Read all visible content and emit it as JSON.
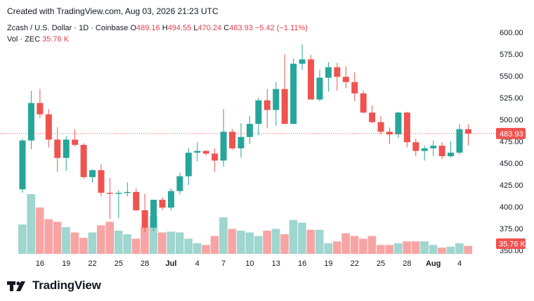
{
  "header": {
    "created": "Created with TradingView.com, Aug 03, 2026 21:23 UTC",
    "symbol": "Zcash / U.S. Dollar · 1D · Coinbase",
    "o_label": "O",
    "o_value": "489.16",
    "h_label": "H",
    "h_value": "494.55",
    "l_label": "L",
    "l_value": "470.24",
    "c_label": "C",
    "c_value": "483.93",
    "change": "−5.42 (−1.11%)",
    "vol_label": "Vol · ZEC",
    "vol_value": "35.76 K"
  },
  "brand": {
    "name": "TradingView"
  },
  "colors": {
    "up": "#26a69a",
    "down": "#ef5350",
    "up_vol": "#9fd6cf",
    "down_vol": "#f6a5a4",
    "badge": "#ef5350"
  },
  "chart_data": {
    "type": "candlestick",
    "x_ticks": [
      "16",
      "19",
      "22",
      "25",
      "28",
      "Jul",
      "4",
      "7",
      "10",
      "13",
      "16",
      "19",
      "22",
      "25",
      "28",
      "Aug",
      "4"
    ],
    "y_ticks": [
      "600.00",
      "575.00",
      "550.00",
      "525.00",
      "500.00",
      "475.00",
      "450.00",
      "425.00",
      "400.00",
      "375.00",
      "350.00"
    ],
    "ylim": [
      350,
      600
    ],
    "last_price": 483.93,
    "last_price_label": "483.93",
    "last_volume_label": "35.76 K",
    "candles": [
      {
        "o": 420,
        "h": 478,
        "l": 416,
        "c": 476,
        "v": 33
      },
      {
        "o": 476,
        "h": 533,
        "l": 466,
        "c": 519,
        "v": 67
      },
      {
        "o": 519,
        "h": 535,
        "l": 502,
        "c": 506,
        "v": 52
      },
      {
        "o": 506,
        "h": 512,
        "l": 468,
        "c": 477,
        "v": 39
      },
      {
        "o": 477,
        "h": 491,
        "l": 440,
        "c": 456,
        "v": 36
      },
      {
        "o": 456,
        "h": 481,
        "l": 441,
        "c": 477,
        "v": 30
      },
      {
        "o": 477,
        "h": 489,
        "l": 469,
        "c": 471,
        "v": 24
      },
      {
        "o": 471,
        "h": 473,
        "l": 432,
        "c": 434,
        "v": 18
      },
      {
        "o": 434,
        "h": 443,
        "l": 428,
        "c": 442,
        "v": 24
      },
      {
        "o": 442,
        "h": 449,
        "l": 412,
        "c": 416,
        "v": 32
      },
      {
        "o": 416,
        "h": 433,
        "l": 386,
        "c": 415,
        "v": 36
      },
      {
        "o": 415,
        "h": 419,
        "l": 387,
        "c": 416,
        "v": 26
      },
      {
        "o": 416,
        "h": 428,
        "l": 412,
        "c": 417,
        "v": 22
      },
      {
        "o": 417,
        "h": 421,
        "l": 395,
        "c": 396,
        "v": 17
      },
      {
        "o": 396,
        "h": 415,
        "l": 371,
        "c": 376,
        "v": 30
      },
      {
        "o": 376,
        "h": 408,
        "l": 372,
        "c": 408,
        "v": 42
      },
      {
        "o": 408,
        "h": 411,
        "l": 396,
        "c": 399,
        "v": 24
      },
      {
        "o": 399,
        "h": 421,
        "l": 396,
        "c": 418,
        "v": 25
      },
      {
        "o": 418,
        "h": 439,
        "l": 414,
        "c": 435,
        "v": 24
      },
      {
        "o": 435,
        "h": 467,
        "l": 425,
        "c": 462,
        "v": 17
      },
      {
        "o": 462,
        "h": 474,
        "l": 452,
        "c": 464,
        "v": 12
      },
      {
        "o": 464,
        "h": 465,
        "l": 459,
        "c": 461,
        "v": 10
      },
      {
        "o": 461,
        "h": 467,
        "l": 440,
        "c": 453,
        "v": 20
      },
      {
        "o": 453,
        "h": 512,
        "l": 446,
        "c": 486,
        "v": 41
      },
      {
        "o": 486,
        "h": 489,
        "l": 465,
        "c": 467,
        "v": 28
      },
      {
        "o": 467,
        "h": 496,
        "l": 456,
        "c": 480,
        "v": 26
      },
      {
        "o": 480,
        "h": 504,
        "l": 472,
        "c": 495,
        "v": 24
      },
      {
        "o": 495,
        "h": 525,
        "l": 482,
        "c": 522,
        "v": 20
      },
      {
        "o": 522,
        "h": 535,
        "l": 490,
        "c": 511,
        "v": 26
      },
      {
        "o": 511,
        "h": 543,
        "l": 493,
        "c": 535,
        "v": 28
      },
      {
        "o": 535,
        "h": 575,
        "l": 495,
        "c": 495,
        "v": 22
      },
      {
        "o": 495,
        "h": 570,
        "l": 495,
        "c": 564,
        "v": 38
      },
      {
        "o": 564,
        "h": 586,
        "l": 557,
        "c": 569,
        "v": 35
      },
      {
        "o": 569,
        "h": 574,
        "l": 523,
        "c": 523,
        "v": 27
      },
      {
        "o": 523,
        "h": 557,
        "l": 521,
        "c": 548,
        "v": 27
      },
      {
        "o": 548,
        "h": 566,
        "l": 532,
        "c": 560,
        "v": 12
      },
      {
        "o": 560,
        "h": 565,
        "l": 533,
        "c": 549,
        "v": 14
      },
      {
        "o": 549,
        "h": 561,
        "l": 536,
        "c": 543,
        "v": 23
      },
      {
        "o": 543,
        "h": 554,
        "l": 521,
        "c": 530,
        "v": 20
      },
      {
        "o": 530,
        "h": 533,
        "l": 507,
        "c": 508,
        "v": 17
      },
      {
        "o": 508,
        "h": 516,
        "l": 496,
        "c": 497,
        "v": 20
      },
      {
        "o": 497,
        "h": 504,
        "l": 483,
        "c": 486,
        "v": 10
      },
      {
        "o": 486,
        "h": 491,
        "l": 472,
        "c": 483,
        "v": 10
      },
      {
        "o": 483,
        "h": 509,
        "l": 479,
        "c": 508,
        "v": 12
      },
      {
        "o": 508,
        "h": 509,
        "l": 468,
        "c": 474,
        "v": 14
      },
      {
        "o": 474,
        "h": 478,
        "l": 458,
        "c": 464,
        "v": 14
      },
      {
        "o": 464,
        "h": 470,
        "l": 453,
        "c": 467,
        "v": 14
      },
      {
        "o": 467,
        "h": 476,
        "l": 458,
        "c": 470,
        "v": 10
      },
      {
        "o": 470,
        "h": 474,
        "l": 455,
        "c": 458,
        "v": 7
      },
      {
        "o": 458,
        "h": 475,
        "l": 456,
        "c": 462,
        "v": 8
      },
      {
        "o": 462,
        "h": 495,
        "l": 460,
        "c": 489,
        "v": 12
      },
      {
        "o": 489,
        "h": 494.55,
        "l": 470.24,
        "c": 483.93,
        "v": 9
      }
    ]
  }
}
